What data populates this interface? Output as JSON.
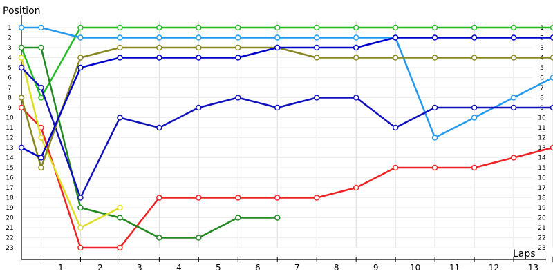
{
  "chart_data": {
    "type": "line",
    "title": "",
    "ylabel": "Position",
    "xlabel": "Laps",
    "x_ticks": [
      "1",
      "2",
      "3",
      "4",
      "5",
      "6",
      "7",
      "8",
      "9",
      "10",
      "11",
      "12",
      "13"
    ],
    "y_ticks": [
      "1",
      "2",
      "3",
      "4",
      "5",
      "6",
      "7",
      "8",
      "9",
      "10",
      "11",
      "12",
      "13",
      "14",
      "15",
      "16",
      "17",
      "18",
      "19",
      "20",
      "21",
      "22",
      "23"
    ],
    "right_ticks": [
      "1",
      "2",
      "3",
      "4",
      "5",
      "6",
      "7",
      "8",
      "9",
      "10",
      "11",
      "12",
      "13",
      "14",
      "15",
      "16",
      "17",
      "18",
      "19",
      "20",
      "21",
      "22",
      "23"
    ],
    "xlim": [
      0,
      13.5
    ],
    "ylim": [
      1,
      23
    ],
    "grid": true,
    "x": [
      0,
      0.5,
      1.5,
      2.5,
      3.5,
      4.5,
      5.5,
      6.5,
      7.5,
      8.5,
      9.5,
      10.5,
      11.5,
      12.5,
      13.5
    ],
    "series": [
      {
        "color": "#22bb22",
        "values": [
          3,
          8,
          1,
          1,
          1,
          1,
          1,
          1,
          1,
          1,
          1,
          1,
          1,
          1,
          1
        ]
      },
      {
        "color": "#2299ee",
        "values": [
          1,
          1,
          2,
          2,
          2,
          2,
          2,
          2,
          2,
          2,
          2,
          12,
          10,
          8,
          6
        ]
      },
      {
        "color": "#ee2222",
        "values": [
          9,
          11,
          23,
          23,
          18,
          18,
          18,
          18,
          18,
          17,
          15,
          15,
          15,
          14,
          13
        ]
      },
      {
        "color": "#228822",
        "values": [
          3,
          3,
          19,
          20,
          22,
          22,
          20,
          20,
          null,
          null,
          null,
          null,
          null,
          null,
          null
        ]
      },
      {
        "color": "#dddd22",
        "values": [
          4,
          12,
          21,
          19,
          null,
          null,
          null,
          null,
          null,
          null,
          null,
          null,
          null,
          null,
          null
        ]
      },
      {
        "color": "#1111bb",
        "values": [
          5,
          7,
          18,
          10,
          11,
          9,
          8,
          9,
          8,
          8,
          11,
          9,
          9,
          9,
          9
        ]
      },
      {
        "color": "#888822",
        "values": [
          8,
          15,
          4,
          3,
          3,
          3,
          3,
          3,
          4,
          4,
          4,
          4,
          4,
          4,
          4
        ]
      },
      {
        "color": "#0000cc",
        "values": [
          13,
          14,
          5,
          4,
          4,
          4,
          4,
          3,
          3,
          3,
          2,
          2,
          2,
          2,
          2
        ]
      }
    ]
  }
}
